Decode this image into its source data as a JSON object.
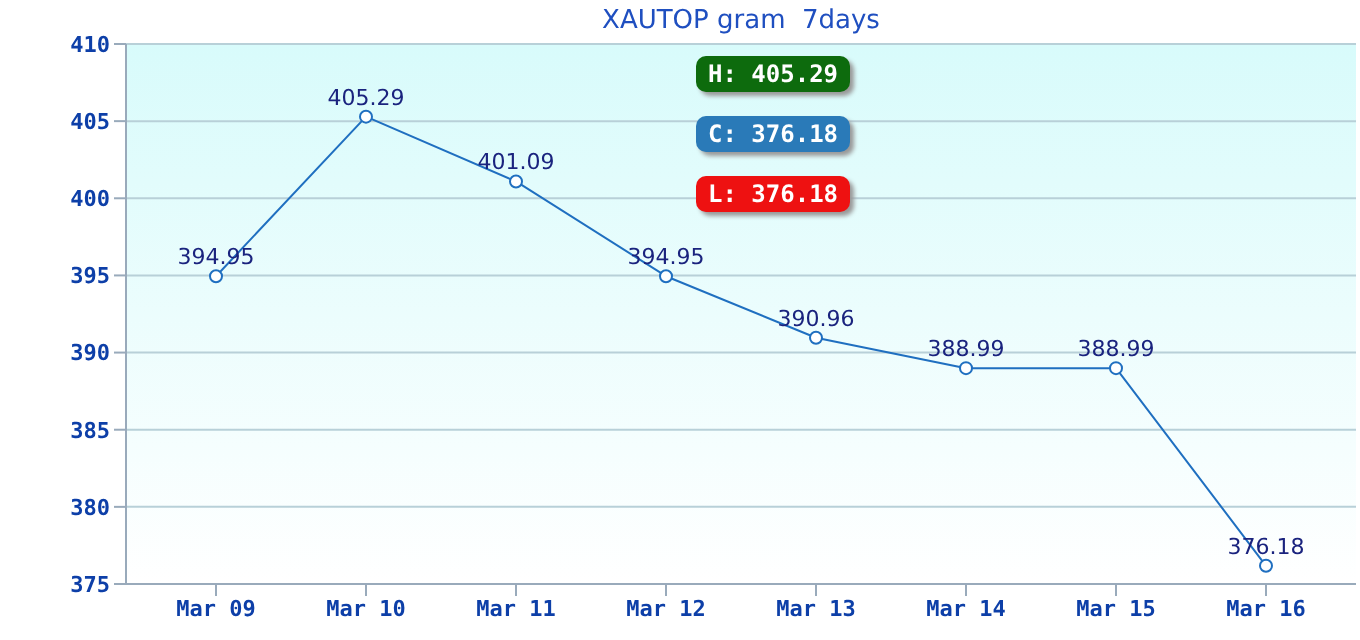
{
  "chart_data": {
    "type": "line",
    "title": "XAUTOP gram  7days",
    "categories": [
      "Mar 09",
      "Mar 10",
      "Mar 11",
      "Mar 12",
      "Mar 13",
      "Mar 14",
      "Mar 15",
      "Mar 16"
    ],
    "series": [
      {
        "color": "#1f6fc0",
        "values": [
          394.95,
          405.29,
          401.09,
          394.95,
          390.96,
          388.99,
          388.99,
          376.18
        ]
      }
    ],
    "ylim": [
      375,
      410
    ],
    "yticks": [
      375,
      380,
      385,
      390,
      395,
      400,
      405,
      410
    ],
    "grid": "y",
    "marker": "circle",
    "line_style": "solid",
    "data_labels": true,
    "legend": false,
    "annotations": [
      "H: 405.29",
      "C: 376.18",
      "L: 376.18"
    ]
  }
}
